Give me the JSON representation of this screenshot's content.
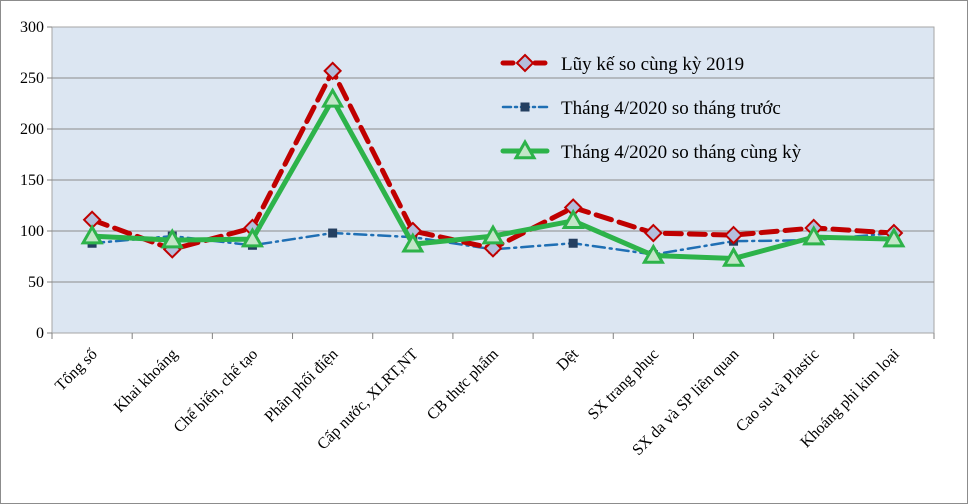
{
  "chart_data": {
    "type": "line",
    "title": "",
    "xlabel": "",
    "ylabel": "",
    "ylim": [
      0,
      300
    ],
    "yticks": [
      0,
      50,
      100,
      150,
      200,
      250,
      300
    ],
    "grid": true,
    "legend_position": "top-right",
    "categories": [
      "Tổng số",
      "Khai khoáng",
      "Chế biến, chế tạo",
      "Phân phối điện",
      "Cấp nước, XLRT,NT",
      "CB thực phẩm",
      "Dệt",
      "SX trang phục",
      "SX da và SP liên quan",
      "Cao su và Plastic",
      "Khoáng phi kim loại"
    ],
    "series": [
      {
        "name": "Lũy kế so cùng kỳ 2019",
        "color": "#C00000",
        "style": "dashed",
        "marker": "diamond",
        "values": [
          111,
          82,
          103,
          257,
          100,
          83,
          123,
          98,
          96,
          103,
          98
        ]
      },
      {
        "name": "Tháng 4/2020  so tháng trước",
        "color": "#1F6FB4",
        "style": "dash-dot",
        "marker": "square",
        "values": [
          88,
          95,
          86,
          98,
          94,
          82,
          88,
          77,
          90,
          91,
          98
        ]
      },
      {
        "name": "Tháng 4/2020  so tháng cùng kỳ",
        "color": "#2DB34A",
        "style": "solid",
        "marker": "triangle",
        "values": [
          95,
          91,
          92,
          229,
          87,
          95,
          110,
          76,
          73,
          94,
          92
        ]
      }
    ]
  }
}
